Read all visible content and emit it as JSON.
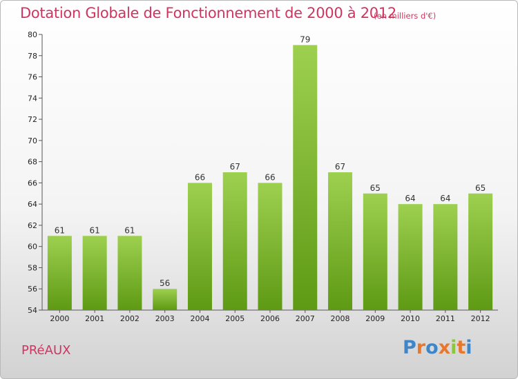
{
  "header": {
    "title": "Dotation Globale de Fonctionnement de 2000 à 2012",
    "subtitle": "(en milliers d'€)"
  },
  "footer": {
    "commune": "PRéAUX",
    "logo": "Proxiti"
  },
  "colors": {
    "title": "#d0345f",
    "bar_light": "#9ed050",
    "bar_dark": "#5e9a14",
    "logo_letters": [
      "#3f86c8",
      "#e8772e",
      "#3f86c8",
      "#e8772e",
      "#8cc63f",
      "#e8772e",
      "#3f86c8"
    ]
  },
  "chart_data": {
    "type": "bar",
    "categories": [
      "2000",
      "2001",
      "2002",
      "2003",
      "2004",
      "2005",
      "2006",
      "2007",
      "2008",
      "2009",
      "2010",
      "2011",
      "2012"
    ],
    "values": [
      61,
      61,
      61,
      56,
      66,
      67,
      66,
      79,
      67,
      65,
      64,
      64,
      65
    ],
    "title": "Dotation Globale de Fonctionnement de 2000 à 2012",
    "ylim": [
      54,
      80
    ],
    "yticks": [
      54,
      56,
      58,
      60,
      62,
      64,
      66,
      68,
      70,
      72,
      74,
      76,
      78,
      80
    ],
    "grid": false,
    "data_labels": true
  }
}
